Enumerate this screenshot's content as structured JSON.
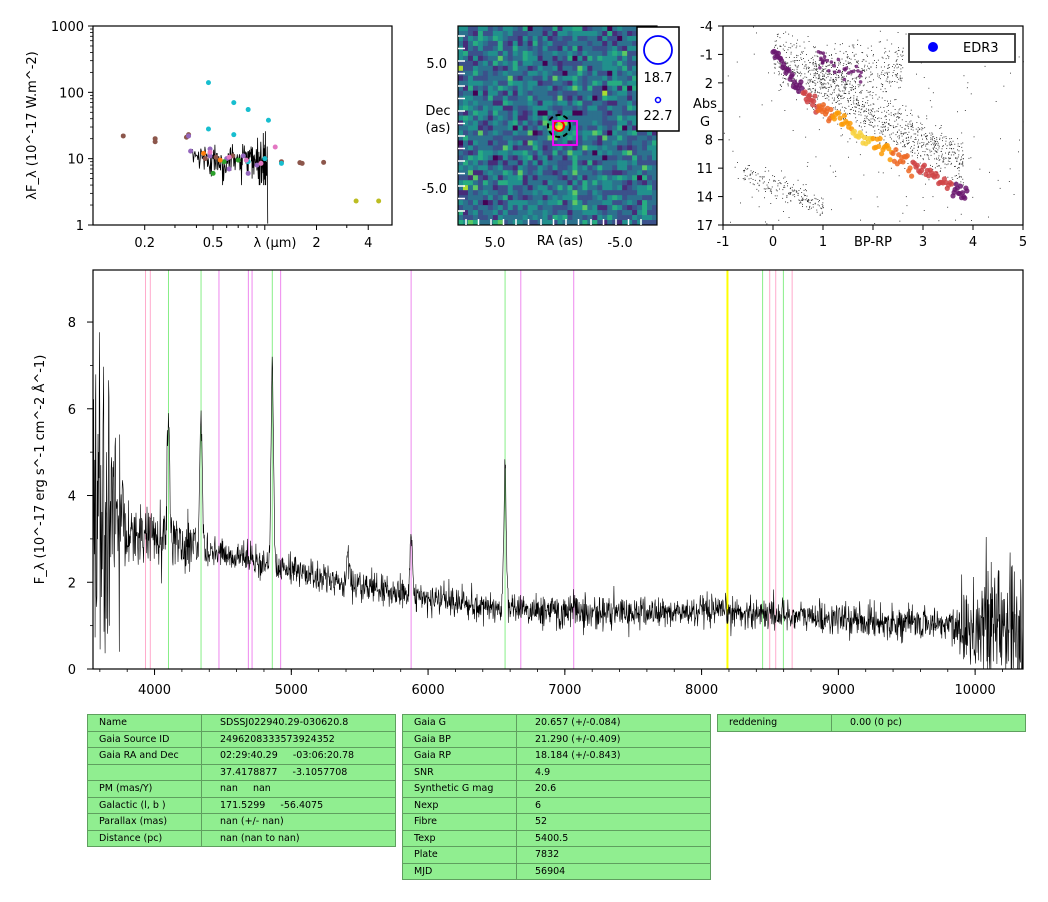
{
  "colors": {
    "spectrum": "#000000",
    "table_bg": "#90ee90",
    "table_border": "#5f9f5f",
    "pink": "#ffaacc",
    "green": "#88ee88",
    "magenta": "#ee88ee",
    "yellow": "#ffff00"
  },
  "chart_data": [
    {
      "type": "scatter",
      "panel": "sed",
      "ylabel": "λF_λ (10^-17 W.m^-2)",
      "xlabel": "λ (μm)",
      "xscale": "log",
      "yscale": "log",
      "xlim": [
        0.1,
        5.5
      ],
      "ylim": [
        1,
        1000
      ],
      "x_ticks": [
        "0.2",
        "0.5",
        "1",
        "2",
        "4"
      ],
      "y_ticks": [
        "1",
        "10",
        "100",
        "1000"
      ],
      "series": [
        {
          "color": "#8c564b",
          "points": [
            [
              0.15,
              22
            ],
            [
              0.23,
              20
            ],
            [
              0.23,
              18
            ],
            [
              0.35,
              21
            ],
            [
              0.36,
              23
            ],
            [
              0.45,
              10
            ],
            [
              0.52,
              10.5
            ],
            [
              0.65,
              11
            ],
            [
              1.25,
              9
            ],
            [
              1.6,
              8.7
            ],
            [
              1.65,
              8.5
            ],
            [
              2.2,
              8.8
            ]
          ]
        },
        {
          "color": "#17becf",
          "points": [
            [
              0.47,
              140
            ],
            [
              0.66,
              70
            ],
            [
              0.8,
              55
            ],
            [
              1.05,
              38
            ],
            [
              0.47,
              28
            ],
            [
              0.66,
              23
            ],
            [
              0.8,
              9
            ],
            [
              1.0,
              10
            ],
            [
              1.25,
              8.5
            ]
          ]
        },
        {
          "color": "#9467bd",
          "points": [
            [
              0.36,
              22
            ],
            [
              0.37,
              13
            ],
            [
              0.48,
              14
            ],
            [
              0.48,
              11
            ],
            [
              0.6,
              10
            ],
            [
              0.62,
              7
            ],
            [
              0.75,
              11
            ],
            [
              0.8,
              6
            ],
            [
              0.9,
              8
            ]
          ]
        },
        {
          "color": "#e377c2",
          "points": [
            [
              0.48,
              12.5
            ],
            [
              0.62,
              10.5
            ],
            [
              0.78,
              9.5
            ],
            [
              0.95,
              8.5
            ],
            [
              1.15,
              15
            ]
          ]
        },
        {
          "color": "#2ca02c",
          "points": [
            [
              0.5,
              6
            ],
            [
              0.58,
              9
            ],
            [
              0.7,
              9.5
            ]
          ]
        },
        {
          "color": "#bcbd22",
          "points": [
            [
              3.4,
              2.3
            ],
            [
              4.6,
              2.3
            ]
          ]
        },
        {
          "color": "#ff7f0e",
          "points": [
            [
              0.44,
              12
            ],
            [
              0.55,
              9.5
            ]
          ]
        }
      ]
    },
    {
      "type": "heatmap",
      "panel": "image",
      "xlabel": "RA (as)",
      "ylabel": "Dec (as)",
      "x_ticks": [
        "5.0",
        "-5.0"
      ],
      "y_ticks": [
        "5.0",
        "-5.0"
      ],
      "xlim": [
        8,
        -8
      ],
      "ylim": [
        -8,
        8
      ],
      "legend_mags": [
        "18.7",
        "22.7"
      ]
    },
    {
      "type": "scatter",
      "panel": "hrd",
      "xlabel": "BP-RP",
      "ylabel": "Abs G",
      "xlim": [
        -1,
        5
      ],
      "ylim": [
        17,
        -4
      ],
      "x_ticks": [
        "-1",
        "0",
        "1",
        "3",
        "4",
        "5"
      ],
      "y_ticks": [
        "-4",
        "-1",
        "2",
        "5",
        "8",
        "11",
        "14",
        "17"
      ],
      "legend": [
        "EDR3"
      ]
    },
    {
      "type": "line",
      "panel": "spectrum",
      "ylabel": "F_λ (10^-17 erg s^-1 cm^-2 Å^-1)",
      "xlim": [
        3550,
        10350
      ],
      "ylim": [
        0,
        9.2
      ],
      "x_ticks": [
        "4000",
        "5000",
        "6000",
        "7000",
        "8000",
        "9000",
        "10000"
      ],
      "y_ticks": [
        "0",
        "2",
        "4",
        "6",
        "8"
      ],
      "continuum": [
        [
          3550,
          3.4
        ],
        [
          3800,
          3.2
        ],
        [
          4000,
          3.0
        ],
        [
          4300,
          2.75
        ],
        [
          4700,
          2.55
        ],
        [
          5000,
          2.3
        ],
        [
          5300,
          2.0
        ],
        [
          5600,
          1.85
        ],
        [
          6000,
          1.6
        ],
        [
          6400,
          1.45
        ],
        [
          6800,
          1.35
        ],
        [
          7200,
          1.3
        ],
        [
          7600,
          1.3
        ],
        [
          8000,
          1.3
        ],
        [
          8400,
          1.3
        ],
        [
          8800,
          1.2
        ],
        [
          9200,
          1.1
        ],
        [
          9600,
          1.05
        ],
        [
          10000,
          1.0
        ],
        [
          10350,
          1.0
        ]
      ],
      "emission_lines": [
        [
          4102,
          3.0
        ],
        [
          4340,
          3.2
        ],
        [
          4861,
          4.6
        ],
        [
          5411,
          0.7
        ],
        [
          5876,
          1.2
        ],
        [
          6563,
          3.1
        ],
        [
          7065,
          0.3
        ]
      ],
      "vlines": [
        {
          "x": 3934,
          "color": "#ffaacc"
        },
        {
          "x": 3969,
          "color": "#ffaacc"
        },
        {
          "x": 4102,
          "color": "#88ee88"
        },
        {
          "x": 4340,
          "color": "#88ee88"
        },
        {
          "x": 4471,
          "color": "#ee88ee"
        },
        {
          "x": 4686,
          "color": "#ee88ee"
        },
        {
          "x": 4713,
          "color": "#ee88ee"
        },
        {
          "x": 4861,
          "color": "#88ee88"
        },
        {
          "x": 4922,
          "color": "#ee88ee"
        },
        {
          "x": 5876,
          "color": "#ee88ee"
        },
        {
          "x": 6563,
          "color": "#88ee88"
        },
        {
          "x": 6678,
          "color": "#ee88ee"
        },
        {
          "x": 7065,
          "color": "#ee88ee"
        },
        {
          "x": 8189,
          "color": "#ffff00"
        },
        {
          "x": 8446,
          "color": "#88ee88"
        },
        {
          "x": 8498,
          "color": "#ffaacc"
        },
        {
          "x": 8542,
          "color": "#ffaacc"
        },
        {
          "x": 8598,
          "color": "#88ee88"
        },
        {
          "x": 8662,
          "color": "#ffaacc"
        }
      ]
    }
  ],
  "tables": {
    "left": [
      [
        "Name",
        "SDSSJ022940.29-030620.8"
      ],
      [
        "Gaia Source ID",
        "2496208333573924352"
      ],
      [
        "Gaia RA and Dec",
        "02:29:40.29     -03:06:20.78"
      ],
      [
        "",
        "37.4178877     -3.1057708"
      ],
      [
        "PM (mas/Y)",
        "nan     nan"
      ],
      [
        "Galactic (l, b )",
        "171.5299     -56.4075"
      ],
      [
        "Parallax (mas)",
        "nan (+/- nan)"
      ],
      [
        "Distance (pc)",
        "nan (nan to nan)"
      ]
    ],
    "middle": [
      [
        "Gaia G",
        "20.657 (+/-0.084)"
      ],
      [
        "Gaia BP",
        "21.290 (+/-0.409)"
      ],
      [
        "Gaia RP",
        "18.184 (+/-0.843)"
      ],
      [
        "SNR",
        "4.9"
      ],
      [
        "Synthetic G mag",
        "20.6"
      ],
      [
        "Nexp",
        "6"
      ],
      [
        "Fibre",
        "52"
      ],
      [
        "Texp",
        "5400.5"
      ],
      [
        "Plate",
        "7832"
      ],
      [
        "MJD",
        "56904"
      ]
    ],
    "right": [
      [
        "reddening",
        "0.00 (0 pc)"
      ]
    ]
  }
}
